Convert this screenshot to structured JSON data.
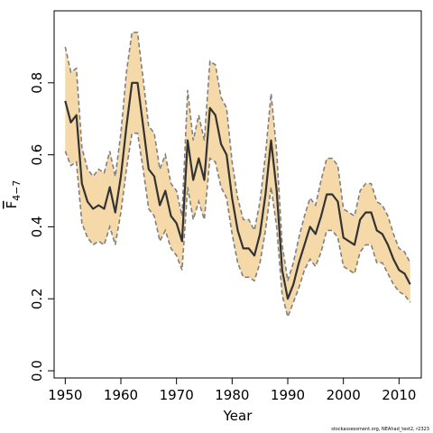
{
  "chart_data": {
    "type": "line",
    "xlabel": "Year",
    "ylabel_main": "F",
    "ylabel_sub": "4−7",
    "xlim": [
      1948,
      2014
    ],
    "ylim": [
      -0.02,
      1.0
    ],
    "xticks": [
      1950,
      1960,
      1970,
      1980,
      1990,
      2000,
      2010
    ],
    "xtick_labels": [
      "1950",
      "1960",
      "1970",
      "1980",
      "1990",
      "2000",
      "2010"
    ],
    "yticks": [
      0.0,
      0.2,
      0.4,
      0.6,
      0.8
    ],
    "ytick_labels": [
      "0.0",
      "0.2",
      "0.4",
      "0.6",
      "0.8"
    ],
    "grid": false,
    "series": [
      {
        "x": [
          1950,
          1951,
          1952,
          1953,
          1954,
          1955,
          1956,
          1957,
          1958,
          1959,
          1960,
          1961,
          1962,
          1963,
          1964,
          1965,
          1966,
          1967,
          1968,
          1969,
          1970,
          1971,
          1972,
          1973,
          1974,
          1975,
          1976,
          1977,
          1978,
          1979,
          1980,
          1981,
          1982,
          1983,
          1984,
          1985,
          1986,
          1987,
          1988,
          1989,
          1990,
          1991,
          1992,
          1993,
          1994,
          1995,
          1996,
          1997,
          1998,
          1999,
          2000,
          2001,
          2002,
          2003,
          2004,
          2005,
          2006,
          2007,
          2008,
          2009,
          2010,
          2011,
          2012
        ],
        "y": [
          0.75,
          0.69,
          0.71,
          0.52,
          0.47,
          0.45,
          0.46,
          0.45,
          0.51,
          0.44,
          0.54,
          0.68,
          0.8,
          0.8,
          0.68,
          0.56,
          0.54,
          0.46,
          0.5,
          0.43,
          0.41,
          0.36,
          0.64,
          0.53,
          0.59,
          0.53,
          0.73,
          0.71,
          0.63,
          0.6,
          0.48,
          0.39,
          0.34,
          0.34,
          0.32,
          0.38,
          0.49,
          0.64,
          0.5,
          0.28,
          0.2,
          0.24,
          0.3,
          0.35,
          0.4,
          0.38,
          0.43,
          0.49,
          0.49,
          0.47,
          0.37,
          0.36,
          0.35,
          0.42,
          0.44,
          0.44,
          0.39,
          0.38,
          0.35,
          0.31,
          0.28,
          0.27,
          0.24
        ],
        "lower": [
          0.61,
          0.57,
          0.58,
          0.41,
          0.37,
          0.35,
          0.36,
          0.35,
          0.4,
          0.35,
          0.44,
          0.56,
          0.66,
          0.66,
          0.56,
          0.45,
          0.43,
          0.36,
          0.39,
          0.34,
          0.32,
          0.28,
          0.51,
          0.42,
          0.47,
          0.42,
          0.59,
          0.58,
          0.51,
          0.48,
          0.38,
          0.3,
          0.26,
          0.26,
          0.25,
          0.3,
          0.39,
          0.51,
          0.4,
          0.21,
          0.15,
          0.19,
          0.23,
          0.28,
          0.31,
          0.29,
          0.33,
          0.39,
          0.39,
          0.37,
          0.29,
          0.28,
          0.27,
          0.33,
          0.35,
          0.35,
          0.3,
          0.3,
          0.27,
          0.24,
          0.22,
          0.21,
          0.19
        ],
        "upper": [
          0.9,
          0.83,
          0.84,
          0.62,
          0.56,
          0.54,
          0.56,
          0.55,
          0.61,
          0.54,
          0.66,
          0.83,
          0.94,
          0.94,
          0.81,
          0.68,
          0.66,
          0.56,
          0.6,
          0.52,
          0.5,
          0.43,
          0.78,
          0.64,
          0.71,
          0.64,
          0.86,
          0.85,
          0.76,
          0.73,
          0.58,
          0.48,
          0.42,
          0.42,
          0.39,
          0.47,
          0.6,
          0.77,
          0.61,
          0.35,
          0.25,
          0.3,
          0.37,
          0.43,
          0.48,
          0.46,
          0.53,
          0.59,
          0.59,
          0.57,
          0.45,
          0.44,
          0.43,
          0.5,
          0.52,
          0.52,
          0.47,
          0.46,
          0.43,
          0.38,
          0.34,
          0.33,
          0.3
        ]
      }
    ],
    "colors": {
      "band": "#F5D9A8",
      "bound_line": "#808080",
      "main_line": "#333333",
      "axis": "#000000"
    }
  },
  "credit": "stockassessment.org, NEAhad_test2, r2323"
}
